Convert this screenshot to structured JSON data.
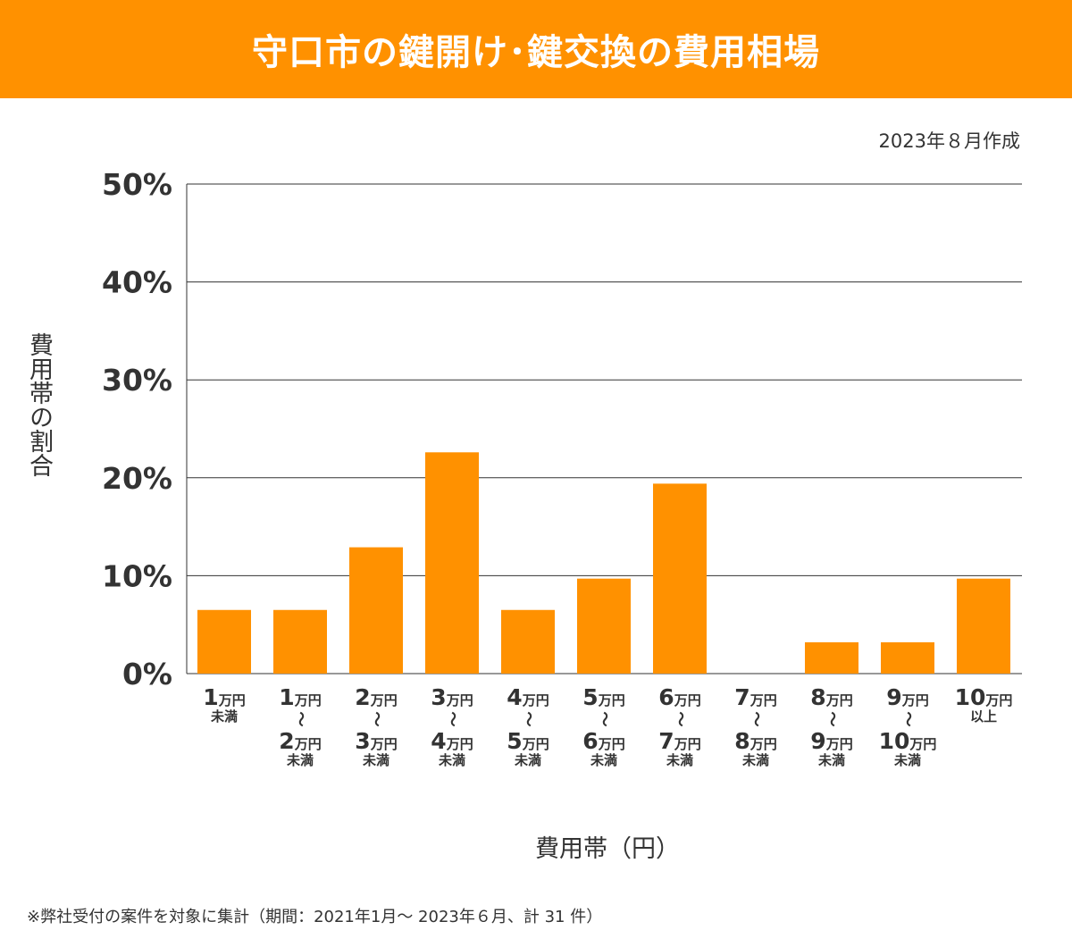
{
  "title": "守口市の鍵開け･鍵交換の費用相場",
  "date_note": "2023年８月作成",
  "footnote": "※弊社受付の案件を対象に集計（期間：2021年1月～ 2023年６月、計 31 件）",
  "colors": {
    "bar": "#ff9100",
    "header": "#ff9100",
    "grid": "#333333"
  },
  "chart_data": {
    "type": "bar",
    "title": "守口市の鍵開け･鍵交換の費用相場",
    "xlabel": "費用帯（円）",
    "ylabel": "費用帯の割合",
    "ylim": [
      0,
      50
    ],
    "yticks": [
      "0%",
      "10%",
      "20%",
      "30%",
      "40%",
      "50%"
    ],
    "grid": true,
    "categories": [
      {
        "top": "1",
        "top_unit": "万円",
        "bottom": "",
        "bottom_unit": "",
        "suffix": "未満"
      },
      {
        "top": "1",
        "top_unit": "万円",
        "bottom": "2",
        "bottom_unit": "万円",
        "suffix": "未満"
      },
      {
        "top": "2",
        "top_unit": "万円",
        "bottom": "3",
        "bottom_unit": "万円",
        "suffix": "未満"
      },
      {
        "top": "3",
        "top_unit": "万円",
        "bottom": "4",
        "bottom_unit": "万円",
        "suffix": "未満"
      },
      {
        "top": "4",
        "top_unit": "万円",
        "bottom": "5",
        "bottom_unit": "万円",
        "suffix": "未満"
      },
      {
        "top": "5",
        "top_unit": "万円",
        "bottom": "6",
        "bottom_unit": "万円",
        "suffix": "未満"
      },
      {
        "top": "6",
        "top_unit": "万円",
        "bottom": "7",
        "bottom_unit": "万円",
        "suffix": "未満"
      },
      {
        "top": "7",
        "top_unit": "万円",
        "bottom": "8",
        "bottom_unit": "万円",
        "suffix": "未満"
      },
      {
        "top": "8",
        "top_unit": "万円",
        "bottom": "9",
        "bottom_unit": "万円",
        "suffix": "未満"
      },
      {
        "top": "9",
        "top_unit": "万円",
        "bottom": "10",
        "bottom_unit": "万円",
        "suffix": "未満"
      },
      {
        "top": "10",
        "top_unit": "万円",
        "bottom": "",
        "bottom_unit": "",
        "suffix": "以上"
      }
    ],
    "range_separator": "～",
    "values": [
      6.5,
      6.5,
      12.9,
      22.6,
      6.5,
      9.7,
      19.4,
      0,
      3.2,
      3.2,
      9.7
    ]
  }
}
